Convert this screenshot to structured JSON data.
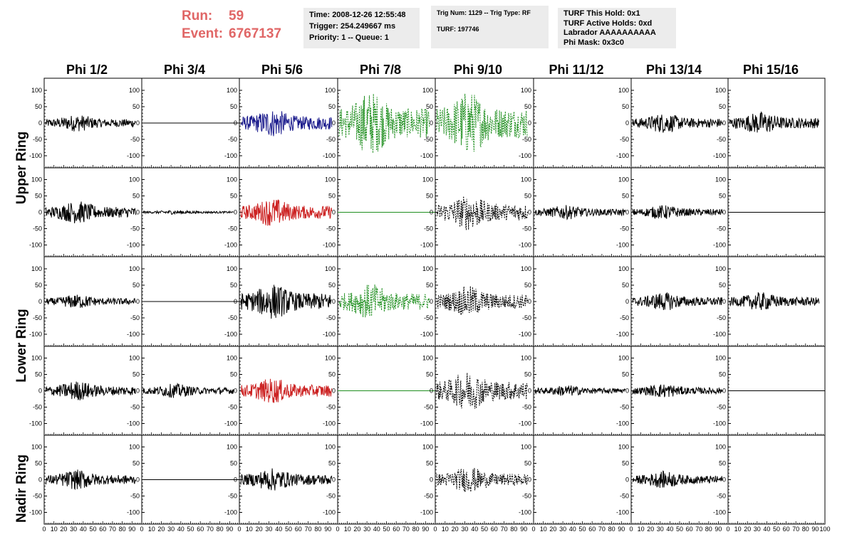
{
  "run_label": "Run:",
  "run_value": "59",
  "event_label": "Event:",
  "event_value": "6767137",
  "info_time": {
    "line1": "Time: 2008-12-26 12:55:48",
    "line2": "Trigger: 254.249667 ms",
    "line3": "Priority: 1 -- Queue: 1"
  },
  "info_trig": {
    "line1": "Trig Num: 1129 -- Trig Type: RF",
    "line2": "TURF: 197746"
  },
  "info_turf": {
    "line1": "TURF This Hold: 0x1",
    "line2": "TURF Active Holds: 0xd",
    "line3": "Labrador AAAAAAAAAA",
    "line4": "Phi Mask: 0x3c0"
  },
  "phi_headers": [
    "Phi 1/2",
    "Phi 3/4",
    "Phi 5/6",
    "Phi 7/8",
    "Phi 9/10",
    "Phi 11/12",
    "Phi 13/14",
    "Phi 15/16"
  ],
  "ring_labels": [
    "Upper Ring",
    "Lower Ring",
    "Nadir Ring"
  ],
  "y_ticks": [
    "100",
    "50",
    "0",
    "-50",
    "-100"
  ],
  "x_tick_labels": [
    "0",
    "10",
    "20",
    "30",
    "40",
    "50",
    "60",
    "70",
    "80",
    "90",
    "100"
  ],
  "colors": {
    "black": "#000000",
    "blue": "#1a1a8c",
    "green": "#1f8f1f",
    "red": "#cc2222",
    "run_text": "#e06666",
    "info_bg": "#ececec"
  },
  "chart_data": {
    "type": "line",
    "title": "",
    "xlabel": "",
    "ylabel": "",
    "xlim": [
      0,
      100
    ],
    "ylim": [
      -140,
      140
    ],
    "rows": 5,
    "cols": 8,
    "panels": [
      [
        {
          "style": "solid",
          "color": "black",
          "amp": 12
        },
        {
          "style": "flat",
          "color": "black",
          "amp": 0
        },
        {
          "style": "solid",
          "color": "blue",
          "amp": 20
        },
        {
          "style": "dashed",
          "color": "green",
          "amp": 45
        },
        {
          "style": "dashed",
          "color": "green",
          "amp": 45
        },
        {
          "style": "none",
          "color": "black",
          "amp": 0
        },
        {
          "style": "solid",
          "color": "black",
          "amp": 14
        },
        {
          "style": "solid",
          "color": "black",
          "amp": 16
        }
      ],
      [
        {
          "style": "solid",
          "color": "black",
          "amp": 16
        },
        {
          "style": "solid",
          "color": "black",
          "amp": 3
        },
        {
          "style": "solid",
          "color": "red",
          "amp": 20
        },
        {
          "style": "flat",
          "color": "green",
          "amp": 0
        },
        {
          "style": "dashed",
          "color": "black",
          "amp": 25
        },
        {
          "style": "solid",
          "color": "black",
          "amp": 10
        },
        {
          "style": "solid",
          "color": "black",
          "amp": 10
        },
        {
          "style": "flat",
          "color": "black",
          "amp": 0
        }
      ],
      [
        {
          "style": "solid",
          "color": "black",
          "amp": 10
        },
        {
          "style": "flat",
          "color": "black",
          "amp": 0
        },
        {
          "style": "solid",
          "color": "black",
          "amp": 25
        },
        {
          "style": "dashed",
          "color": "green",
          "amp": 25
        },
        {
          "style": "dashed",
          "color": "black",
          "amp": 22
        },
        {
          "style": "none",
          "color": "black",
          "amp": 0
        },
        {
          "style": "solid",
          "color": "black",
          "amp": 13
        },
        {
          "style": "solid",
          "color": "black",
          "amp": 13
        }
      ],
      [
        {
          "style": "solid",
          "color": "black",
          "amp": 14
        },
        {
          "style": "solid",
          "color": "black",
          "amp": 10
        },
        {
          "style": "solid",
          "color": "red",
          "amp": 18
        },
        {
          "style": "flat",
          "color": "green",
          "amp": 0
        },
        {
          "style": "dashed",
          "color": "black",
          "amp": 28
        },
        {
          "style": "solid",
          "color": "black",
          "amp": 8
        },
        {
          "style": "solid",
          "color": "black",
          "amp": 10
        },
        {
          "style": "flat",
          "color": "black",
          "amp": 0
        }
      ],
      [
        {
          "style": "solid",
          "color": "black",
          "amp": 14
        },
        {
          "style": "flat",
          "color": "black",
          "amp": 0
        },
        {
          "style": "solid",
          "color": "black",
          "amp": 16
        },
        {
          "style": "none",
          "color": "black",
          "amp": 0
        },
        {
          "style": "dashed",
          "color": "black",
          "amp": 18
        },
        {
          "style": "none",
          "color": "black",
          "amp": 0
        },
        {
          "style": "solid",
          "color": "black",
          "amp": 12
        },
        {
          "style": "none",
          "color": "black",
          "amp": 0
        }
      ]
    ]
  }
}
